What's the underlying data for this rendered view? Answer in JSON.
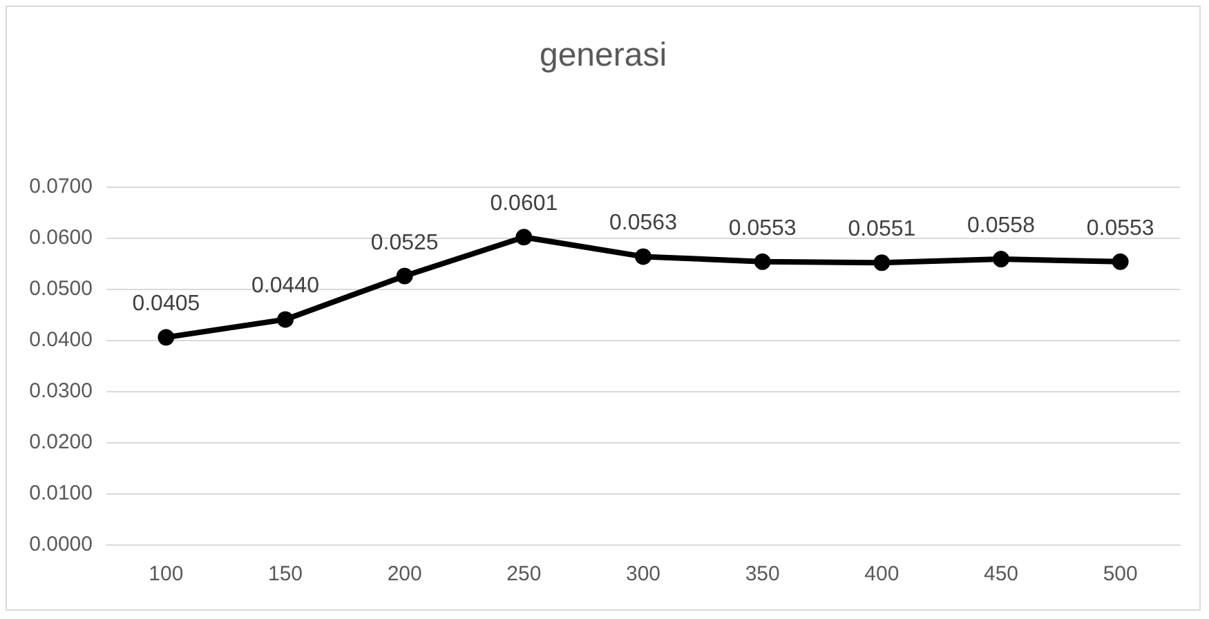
{
  "chart_data": {
    "type": "line",
    "title": "generasi",
    "categories": [
      "100",
      "150",
      "200",
      "250",
      "300",
      "350",
      "400",
      "450",
      "500"
    ],
    "series": [
      {
        "color": "#000000",
        "values": [
          0.0405,
          0.044,
          0.0525,
          0.0601,
          0.0563,
          0.0553,
          0.0551,
          0.0558,
          0.0553
        ],
        "value_labels": [
          "0.0405",
          "0.0440",
          "0.0525",
          "0.0601",
          "0.0563",
          "0.0553",
          "0.0551",
          "0.0558",
          "0.0553"
        ]
      }
    ],
    "ylim": [
      0,
      0.07
    ],
    "yticks": [
      {
        "value": 0,
        "label": "0.0000"
      },
      {
        "value": 0.01,
        "label": "0.0100"
      },
      {
        "value": 0.02,
        "label": "0.0200"
      },
      {
        "value": 0.03,
        "label": "0.0300"
      },
      {
        "value": 0.04,
        "label": "0.0400"
      },
      {
        "value": 0.05,
        "label": "0.0500"
      },
      {
        "value": 0.06,
        "label": "0.0600"
      },
      {
        "value": 0.07,
        "label": "0.0700"
      }
    ],
    "grid": "y",
    "marker": "circle",
    "line_style": "solid"
  }
}
